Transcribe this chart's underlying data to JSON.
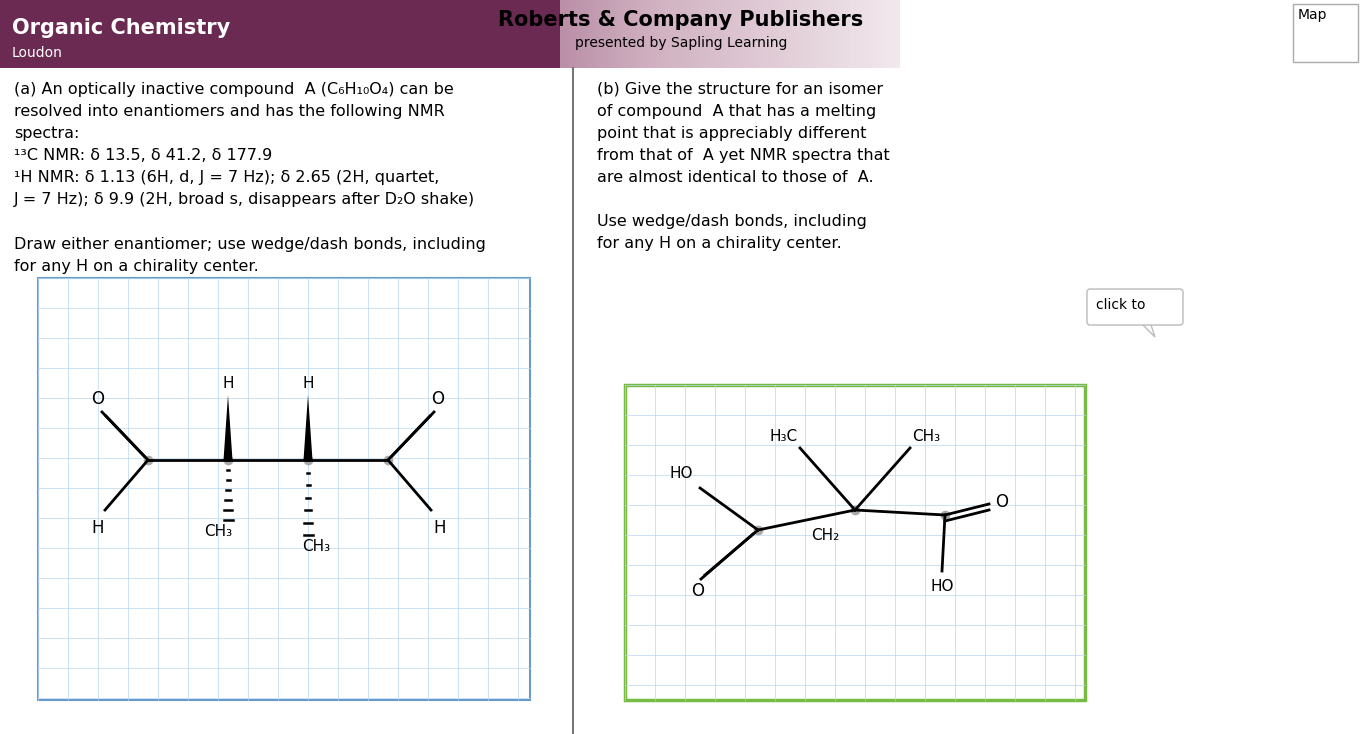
{
  "bg_color": "#ffffff",
  "header_bg_dark": "#6b2a52",
  "header_bg_mid": "#a06080",
  "header_title": "Organic Chemistry",
  "header_subtitle": "Loudon",
  "header_publisher": "Roberts & Company Publishers",
  "header_publisher2": "presented by Sapling Learning",
  "map_label": "Map",
  "text_a_line1": "(a) An optically inactive compound  A (C₆H₁₀O₄) can be",
  "text_a_line2": "resolved into enantiomers and has the following NMR",
  "text_a_line3": "spectra:",
  "text_c13": "¹³C NMR: δ 13.5, δ 41.2, δ 177.9",
  "text_h1": "¹H NMR: δ 1.13 (6H, d, J = 7 Hz); δ 2.65 (2H, quartet,",
  "text_h2": "J = 7 Hz); δ 9.9 (2H, broad s, disappears after D₂O shake)",
  "text_draw": "Draw either enantiomer; use wedge/dash bonds, including",
  "text_draw2": "for any H on a chirality center.",
  "text_b_line1": "(b) Give the structure for an isomer",
  "text_b_line2": "of compound  A that has a melting",
  "text_b_line3": "point that is appreciably different",
  "text_b_line4": "from that of  A yet NMR spectra that",
  "text_b_line5": "are almost identical to those of  A.",
  "text_b_line7": "Use wedge/dash bonds, including",
  "text_b_line8": "for any H on a chirality center.",
  "click_label": "click to",
  "grid_color": "#b8d8f0",
  "mol_dot_color": "#a0a0a0",
  "mol_line_color": "#000000"
}
